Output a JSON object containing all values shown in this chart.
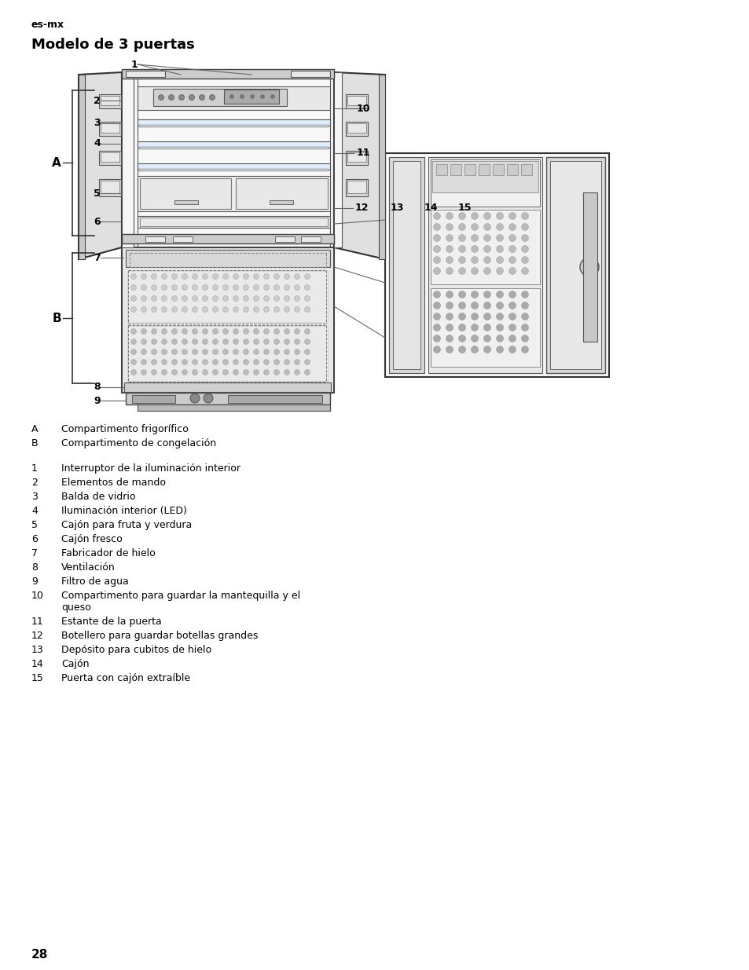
{
  "page_header": "es-mx",
  "page_title": "Modelo de 3 puertas",
  "page_number": "28",
  "bg_color": "#ffffff",
  "ab_labels": [
    [
      "A",
      "Compartimento frigorífico"
    ],
    [
      "B",
      "Compartimento de congelación"
    ]
  ],
  "numbered_labels": [
    [
      "1",
      "Interruptor de la iluminación interior"
    ],
    [
      "2",
      "Elementos de mando"
    ],
    [
      "3",
      "Balda de vidrio"
    ],
    [
      "4",
      "Iluminación interior (LED)"
    ],
    [
      "5",
      "Cajón para fruta y verdura"
    ],
    [
      "6",
      "Cajón fresco"
    ],
    [
      "7",
      "Fabricador de hielo"
    ],
    [
      "8",
      "Ventilación"
    ],
    [
      "9",
      "Filtro de agua"
    ],
    [
      "10",
      "Compartimento para guardar la mantequilla y el\nqueso"
    ],
    [
      "11",
      "Estante de la puerta"
    ],
    [
      "12",
      "Botellero para guardar botellas grandes"
    ],
    [
      "13",
      "Depósito para cubitos de hielo"
    ],
    [
      "14",
      "Cajón"
    ],
    [
      "15",
      "Puerta con cajón extraíble"
    ]
  ],
  "fig_width": 9.54,
  "fig_height": 12.35,
  "dpi": 100
}
